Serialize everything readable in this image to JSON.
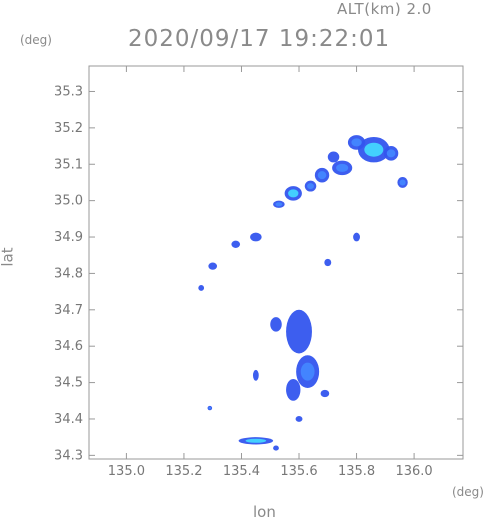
{
  "header": {
    "alt_label": "ALT(km)  2.0",
    "timestamp": "2020/09/17 19:22:01"
  },
  "chart_data": {
    "type": "scatter",
    "title": "2020/09/17 19:22:01",
    "xlabel": "lon",
    "ylabel": "lat",
    "x_unit": "(deg)",
    "y_unit": "(deg)",
    "xlim": [
      134.87,
      136.17
    ],
    "ylim": [
      34.29,
      35.37
    ],
    "x_ticks": [
      135.0,
      135.2,
      135.4,
      135.6,
      135.8,
      136.0
    ],
    "y_ticks": [
      34.3,
      34.4,
      34.5,
      34.6,
      34.7,
      34.8,
      34.9,
      35.0,
      35.1,
      35.2,
      35.3
    ],
    "x_tick_labels": [
      "135.0",
      "135.2",
      "135.4",
      "135.6",
      "135.8",
      "136.0"
    ],
    "y_tick_labels": [
      "34.3",
      "34.4",
      "34.5",
      "34.6",
      "34.7",
      "34.8",
      "34.9",
      "35.0",
      "35.1",
      "35.2",
      "35.3"
    ],
    "grid": false,
    "colors": {
      "echo_weak": "#3355ee",
      "echo_mid": "#4488ff",
      "echo_strong": "#44ddff",
      "axis": "#999999"
    },
    "echo_cells": [
      {
        "lon": 135.86,
        "lat": 35.14,
        "rx": 0.055,
        "ry": 0.035,
        "level": "strong"
      },
      {
        "lon": 135.8,
        "lat": 35.16,
        "rx": 0.03,
        "ry": 0.02,
        "level": "mid"
      },
      {
        "lon": 135.92,
        "lat": 35.13,
        "rx": 0.025,
        "ry": 0.02,
        "level": "mid"
      },
      {
        "lon": 135.75,
        "lat": 35.09,
        "rx": 0.035,
        "ry": 0.02,
        "level": "mid"
      },
      {
        "lon": 135.72,
        "lat": 35.12,
        "rx": 0.02,
        "ry": 0.015,
        "level": "weak"
      },
      {
        "lon": 135.68,
        "lat": 35.07,
        "rx": 0.025,
        "ry": 0.02,
        "level": "mid"
      },
      {
        "lon": 135.58,
        "lat": 35.02,
        "rx": 0.03,
        "ry": 0.02,
        "level": "strong"
      },
      {
        "lon": 135.64,
        "lat": 35.04,
        "rx": 0.02,
        "ry": 0.015,
        "level": "mid"
      },
      {
        "lon": 135.53,
        "lat": 34.99,
        "rx": 0.02,
        "ry": 0.01,
        "level": "mid"
      },
      {
        "lon": 135.96,
        "lat": 35.05,
        "rx": 0.018,
        "ry": 0.015,
        "level": "mid"
      },
      {
        "lon": 135.45,
        "lat": 34.9,
        "rx": 0.02,
        "ry": 0.012,
        "level": "weak"
      },
      {
        "lon": 135.38,
        "lat": 34.88,
        "rx": 0.015,
        "ry": 0.01,
        "level": "weak"
      },
      {
        "lon": 135.3,
        "lat": 34.82,
        "rx": 0.015,
        "ry": 0.01,
        "level": "weak"
      },
      {
        "lon": 135.26,
        "lat": 34.76,
        "rx": 0.01,
        "ry": 0.008,
        "level": "weak"
      },
      {
        "lon": 135.8,
        "lat": 34.9,
        "rx": 0.012,
        "ry": 0.012,
        "level": "weak"
      },
      {
        "lon": 135.7,
        "lat": 34.83,
        "rx": 0.012,
        "ry": 0.01,
        "level": "weak"
      },
      {
        "lon": 135.6,
        "lat": 34.64,
        "rx": 0.045,
        "ry": 0.06,
        "level": "weak"
      },
      {
        "lon": 135.63,
        "lat": 34.53,
        "rx": 0.04,
        "ry": 0.045,
        "level": "mid"
      },
      {
        "lon": 135.58,
        "lat": 34.48,
        "rx": 0.025,
        "ry": 0.03,
        "level": "weak"
      },
      {
        "lon": 135.52,
        "lat": 34.66,
        "rx": 0.02,
        "ry": 0.02,
        "level": "weak"
      },
      {
        "lon": 135.45,
        "lat": 34.52,
        "rx": 0.01,
        "ry": 0.015,
        "level": "weak"
      },
      {
        "lon": 135.69,
        "lat": 34.47,
        "rx": 0.015,
        "ry": 0.01,
        "level": "weak"
      },
      {
        "lon": 135.6,
        "lat": 34.4,
        "rx": 0.012,
        "ry": 0.008,
        "level": "weak"
      },
      {
        "lon": 135.29,
        "lat": 34.43,
        "rx": 0.008,
        "ry": 0.006,
        "level": "mid"
      },
      {
        "lon": 135.45,
        "lat": 34.34,
        "rx": 0.06,
        "ry": 0.01,
        "level": "strong"
      },
      {
        "lon": 135.52,
        "lat": 34.32,
        "rx": 0.01,
        "ry": 0.007,
        "level": "weak"
      }
    ]
  }
}
